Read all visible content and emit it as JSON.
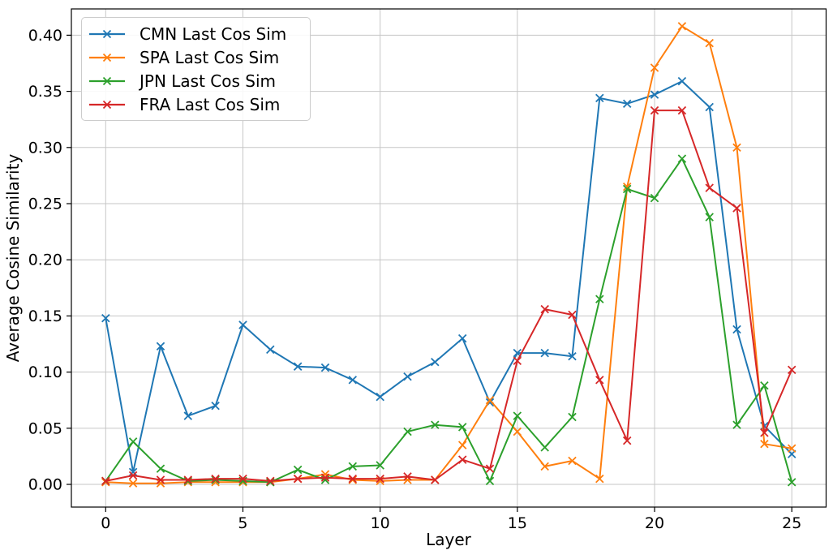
{
  "figure": {
    "background": "#ffffff"
  },
  "chart_data": {
    "type": "line",
    "marker": "x",
    "grid": true,
    "legend_position": "upper left",
    "xlabel": "Layer",
    "ylabel": "Average Cosine Similarity",
    "xlim": [
      -1.25,
      26.25
    ],
    "ylim": [
      -0.0202,
      0.4234
    ],
    "xticks": [
      0,
      5,
      10,
      15,
      20,
      25
    ],
    "xtick_labels": [
      "0",
      "5",
      "10",
      "15",
      "20",
      "25"
    ],
    "yticks": [
      0.0,
      0.05,
      0.1,
      0.15,
      0.2,
      0.25,
      0.3,
      0.35,
      0.4
    ],
    "ytick_labels": [
      "0.00",
      "0.05",
      "0.10",
      "0.15",
      "0.20",
      "0.25",
      "0.30",
      "0.35",
      "0.40"
    ],
    "x": [
      0,
      1,
      2,
      3,
      4,
      5,
      6,
      7,
      8,
      9,
      10,
      11,
      12,
      13,
      14,
      15,
      16,
      17,
      18,
      19,
      20,
      21,
      22,
      23,
      24,
      25
    ],
    "series": [
      {
        "name": "CMN Last Cos Sim",
        "color": "#1f77b4",
        "values": [
          0.148,
          0.011,
          0.123,
          0.061,
          0.07,
          0.142,
          0.12,
          0.105,
          0.104,
          0.093,
          0.078,
          0.096,
          0.109,
          0.13,
          0.073,
          0.117,
          0.117,
          0.114,
          0.344,
          0.339,
          0.347,
          0.359,
          0.336,
          0.138,
          0.052,
          0.027
        ]
      },
      {
        "name": "SPA Last Cos Sim",
        "color": "#ff7f0e",
        "values": [
          0.002,
          0.001,
          0.001,
          0.002,
          0.002,
          0.002,
          0.002,
          0.005,
          0.009,
          0.004,
          0.003,
          0.004,
          0.004,
          0.035,
          0.075,
          0.047,
          0.016,
          0.021,
          0.005,
          0.265,
          0.371,
          0.408,
          0.393,
          0.3,
          0.036,
          0.032
        ]
      },
      {
        "name": "JPN Last Cos Sim",
        "color": "#2ca02c",
        "values": [
          0.003,
          0.038,
          0.014,
          0.003,
          0.004,
          0.003,
          0.002,
          0.013,
          0.004,
          0.016,
          0.017,
          0.047,
          0.053,
          0.051,
          0.003,
          0.061,
          0.033,
          0.06,
          0.165,
          0.263,
          0.255,
          0.29,
          0.238,
          0.053,
          0.088,
          0.002
        ]
      },
      {
        "name": "FRA Last Cos Sim",
        "color": "#d62728",
        "values": [
          0.003,
          0.008,
          0.004,
          0.004,
          0.005,
          0.005,
          0.003,
          0.005,
          0.006,
          0.005,
          0.005,
          0.007,
          0.004,
          0.022,
          0.014,
          0.11,
          0.156,
          0.151,
          0.093,
          0.039,
          0.333,
          0.333,
          0.264,
          0.246,
          0.046,
          0.102
        ]
      }
    ]
  }
}
